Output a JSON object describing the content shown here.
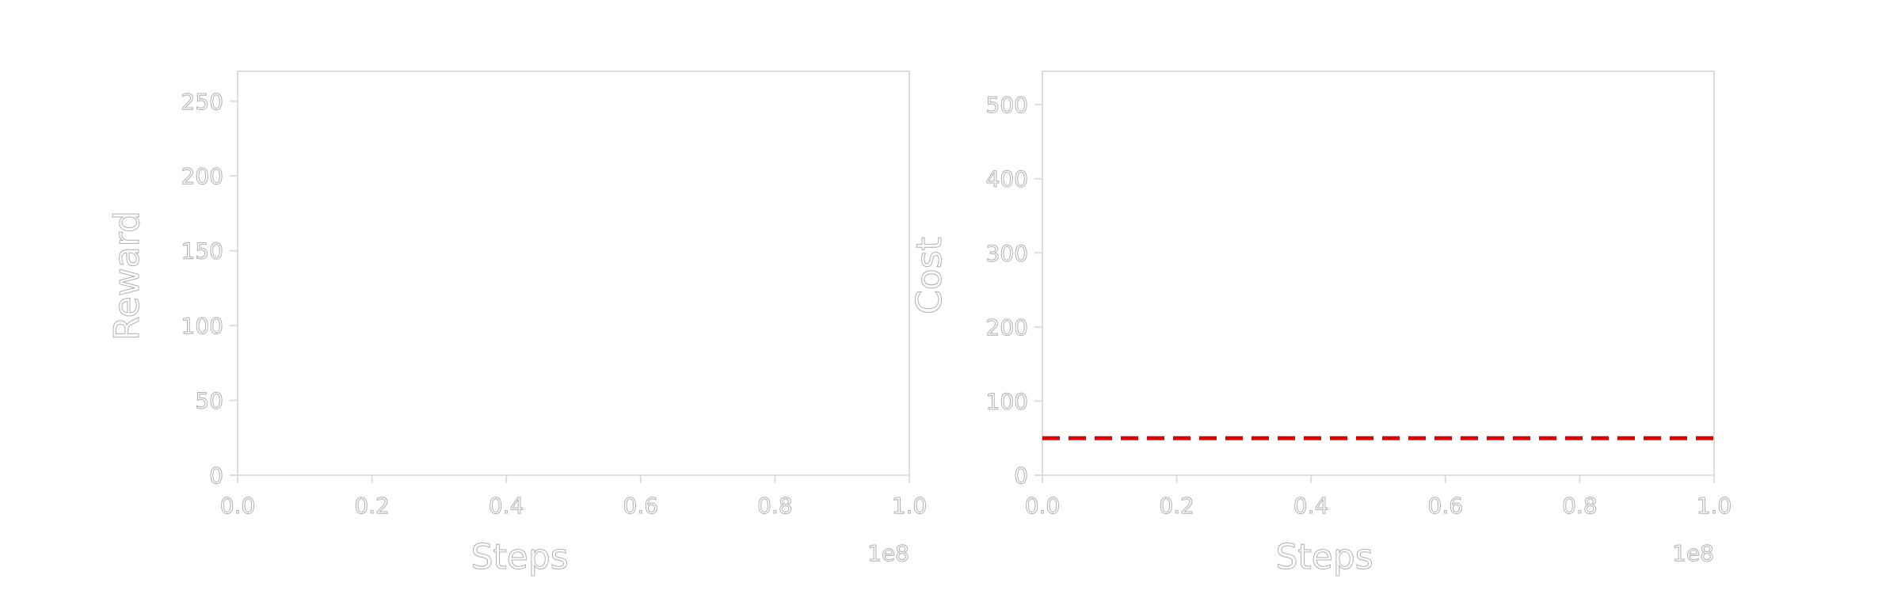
{
  "chart_data": [
    {
      "type": "line",
      "title": "",
      "xlabel": "Steps",
      "ylabel": "Reward",
      "x_offset_label": "1e8",
      "xlim": [
        0.0,
        1.0
      ],
      "ylim": [
        0,
        270
      ],
      "xticks": [
        "0.0",
        "0.2",
        "0.4",
        "0.6",
        "0.8",
        "1.0"
      ],
      "yticks": [
        "0",
        "50",
        "100",
        "150",
        "200",
        "250"
      ],
      "grid": false,
      "series": []
    },
    {
      "type": "line",
      "title": "",
      "xlabel": "Steps",
      "ylabel": "Cost",
      "x_offset_label": "1e8",
      "xlim": [
        0.0,
        1.0
      ],
      "ylim": [
        0,
        545
      ],
      "xticks": [
        "0.0",
        "0.2",
        "0.4",
        "0.6",
        "0.8",
        "1.0"
      ],
      "yticks": [
        "0",
        "100",
        "200",
        "300",
        "400",
        "500"
      ],
      "grid": false,
      "series": [],
      "threshold": {
        "value": 50,
        "color": "#e00000",
        "style": "dashed"
      }
    }
  ]
}
